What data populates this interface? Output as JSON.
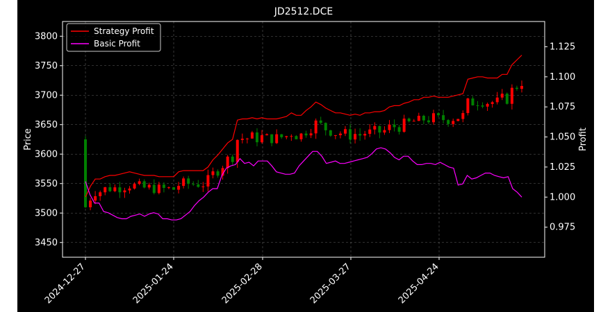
{
  "chart_data": {
    "type": "candlestick+line",
    "title": "JD2512.DCE",
    "ylabel": "Price",
    "y2label": "Profit",
    "ylim": [
      3425,
      3825
    ],
    "y2lim": [
      0.95,
      1.146
    ],
    "yticks": [
      3450,
      3500,
      3550,
      3600,
      3650,
      3700,
      3750,
      3800
    ],
    "y2ticks": [
      "0.975",
      "1.000",
      "1.025",
      "1.050",
      "1.075",
      "1.100",
      "1.125"
    ],
    "xticks": [
      "2024-12-27",
      "2025-01-24",
      "2025-02-28",
      "2025-03-27",
      "2025-04-24"
    ],
    "grid": true,
    "legend_position": "top-left",
    "colors": {
      "up": "#ff0000",
      "down": "#008000",
      "strategy": "#ff0000",
      "basic": "#ff00ff"
    },
    "series": [
      {
        "name": "Strategy Profit",
        "color": "#ff0000",
        "axis": "right",
        "values": [
          1.0,
          1.009,
          1.015,
          1.015,
          1.017,
          1.018,
          1.018,
          1.019,
          1.02,
          1.021,
          1.02,
          1.019,
          1.018,
          1.018,
          1.018,
          1.017,
          1.017,
          1.017,
          1.017,
          1.021,
          1.022,
          1.022,
          1.022,
          1.022,
          1.022,
          1.025,
          1.031,
          1.035,
          1.04,
          1.045,
          1.048,
          1.064,
          1.065,
          1.065,
          1.066,
          1.065,
          1.066,
          1.065,
          1.065,
          1.065,
          1.066,
          1.067,
          1.07,
          1.068,
          1.068,
          1.072,
          1.075,
          1.079,
          1.077,
          1.074,
          1.072,
          1.07,
          1.07,
          1.069,
          1.068,
          1.069,
          1.068,
          1.07,
          1.07,
          1.071,
          1.071,
          1.072,
          1.075,
          1.076,
          1.076,
          1.078,
          1.079,
          1.081,
          1.081,
          1.083,
          1.083,
          1.084,
          1.083,
          1.083,
          1.083,
          1.084,
          1.085,
          1.086,
          1.098,
          1.099,
          1.1,
          1.1,
          1.099,
          1.099,
          1.099,
          1.102,
          1.102,
          1.11,
          1.114,
          1.118
        ]
      },
      {
        "name": "Basic Profit",
        "color": "#ff00ff",
        "axis": "right",
        "values": [
          1.013,
          1.002,
          0.995,
          0.995,
          0.988,
          0.987,
          0.985,
          0.983,
          0.982,
          0.982,
          0.984,
          0.985,
          0.986,
          0.984,
          0.986,
          0.987,
          0.986,
          0.982,
          0.982,
          0.981,
          0.981,
          0.982,
          0.985,
          0.988,
          0.993,
          0.997,
          1.0,
          1.004,
          1.007,
          1.007,
          1.018,
          1.024,
          1.026,
          1.027,
          1.032,
          1.028,
          1.029,
          1.026,
          1.03,
          1.03,
          1.03,
          1.026,
          1.021,
          1.02,
          1.019,
          1.019,
          1.02,
          1.026,
          1.03,
          1.034,
          1.038,
          1.038,
          1.034,
          1.028,
          1.029,
          1.03,
          1.028,
          1.028,
          1.029,
          1.03,
          1.031,
          1.032,
          1.033,
          1.036,
          1.04,
          1.041,
          1.04,
          1.037,
          1.033,
          1.031,
          1.034,
          1.034,
          1.03,
          1.027,
          1.027,
          1.028,
          1.028,
          1.027,
          1.029,
          1.027,
          1.025,
          1.024,
          1.01,
          1.011,
          1.018,
          1.015,
          1.016,
          1.018,
          1.02,
          1.02,
          1.018,
          1.017,
          1.016,
          1.017,
          1.007,
          1.004,
          1.0
        ]
      }
    ]
  }
}
